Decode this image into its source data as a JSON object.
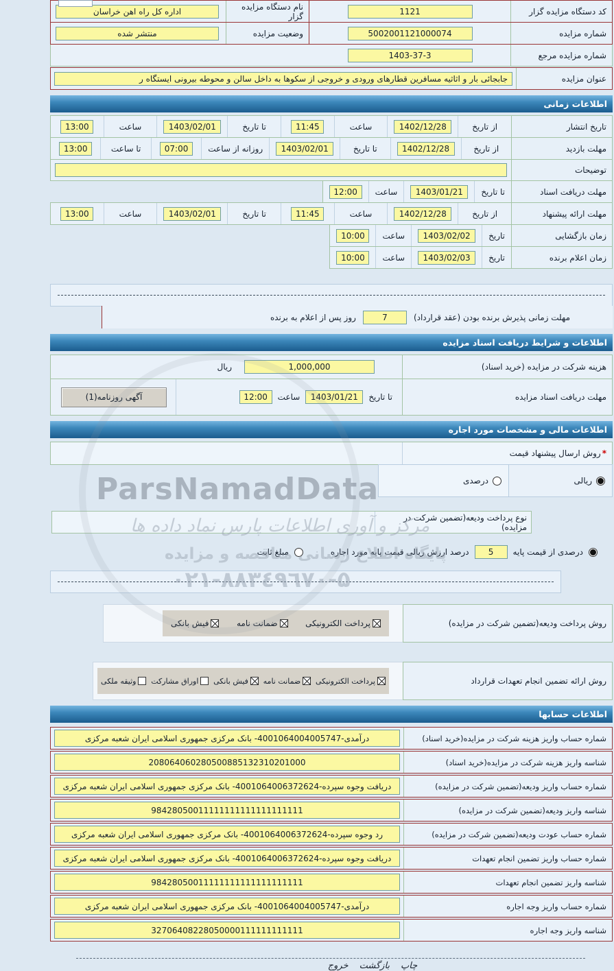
{
  "general": {
    "device_code_label": "کد دستگاه مزایده گزار",
    "device_code": "1121",
    "device_name_label": "نام دستگاه مزایده گزار",
    "device_name": "اداره کل راه اهن خراسان",
    "auction_no_label": "شماره مزایده",
    "auction_no": "5002001121000074",
    "status_label": "وضعیت مزایده",
    "status": "منتشر شده",
    "ref_no_label": "شماره مزایده مرجع",
    "ref_no": "1403-37-3",
    "title_label": "عنوان مزایده",
    "title": "جابجائی  بار و اثاثیه مسافرین قطارهای ورودی و خروجی از سکوها به  داخل سالن و محوطه بیرونی  ایستگاه ر"
  },
  "sections": {
    "time": "اطلاعات زمانی",
    "docs": "اطلاعات و شرایط دریافت اسناد مزایده",
    "financial": "اطلاعات مالی و مشخصات مورد اجاره",
    "accounts": "اطلاعات حسابها"
  },
  "time_rows": [
    {
      "label": "تاریخ انتشار",
      "full": true,
      "fields": [
        {
          "c": "از تاریخ",
          "v": "1402/12/28"
        },
        {
          "c": "ساعت",
          "v": "11:45"
        },
        {
          "c": "تا تاریخ",
          "v": "1403/02/01"
        },
        {
          "c": "ساعت",
          "v": "13:00"
        }
      ]
    },
    {
      "label": "مهلت بازدید",
      "full": true,
      "fields": [
        {
          "c": "از تاریخ",
          "v": "1402/12/28"
        },
        {
          "c": "تا تاریخ",
          "v": "1403/02/01"
        },
        {
          "c": "روزانه از ساعت",
          "v": "07:00"
        },
        {
          "c": "تا ساعت",
          "v": "13:00"
        }
      ]
    },
    {
      "label": "توضیحات",
      "textarea": true,
      "value": ""
    },
    {
      "label": "مهلت دریافت اسناد",
      "fields": [
        {
          "c": "تا تاریخ",
          "v": "1403/01/21"
        },
        {
          "c": "ساعت",
          "v": "12:00"
        }
      ]
    },
    {
      "label": "مهلت ارائه پیشنهاد",
      "full": true,
      "fields": [
        {
          "c": "از تاریخ",
          "v": "1402/12/28"
        },
        {
          "c": "ساعت",
          "v": "11:45"
        },
        {
          "c": "تا تاریخ",
          "v": "1403/02/01"
        },
        {
          "c": "ساعت",
          "v": "13:00"
        }
      ]
    },
    {
      "label": "زمان بازگشایی",
      "fields": [
        {
          "c": "تاریخ",
          "v": "1403/02/02"
        },
        {
          "c": "ساعت",
          "v": "10:00"
        }
      ]
    },
    {
      "label": "زمان اعلام برنده",
      "fields": [
        {
          "c": "تاریخ",
          "v": "1403/02/03"
        },
        {
          "c": "ساعت",
          "v": "10:00"
        }
      ]
    }
  ],
  "award": {
    "label": "مهلت زمانی پذیرش برنده بودن (عقد قرارداد)",
    "value": "7",
    "suffix": "روز پس از اعلام به برنده"
  },
  "docs": {
    "fee_label": "هزینه شرکت در مزایده (خرید اسناد)",
    "fee_value": "1,000,000",
    "fee_unit": "ریال",
    "deadline_label": "مهلت دریافت اسناد مزایده",
    "deadline_date_caption": "تا تاریخ",
    "deadline_date": "1403/01/21",
    "deadline_time_caption": "ساعت",
    "deadline_time": "12:00",
    "newspaper_button": "آگهی روزنامه(1)"
  },
  "financial": {
    "required_mark": "*",
    "price_method_label": "روش ارسال پیشنهاد قیمت",
    "rial_label": "ریالی",
    "rial_selected": true,
    "percent_label": "درصدی",
    "percent_selected": false,
    "deposit_type_label": "نوع پرداخت ودیعه(تضمین شرکت در مزایده)",
    "percent_base_label": "درصدی از قیمت پایه",
    "percent_base_selected": true,
    "percent_value": "5",
    "percent_caption": "درصد ارزش ریالی قیمت پایه مورد اجاره",
    "fixed_label": "مبلغ ثابت",
    "fixed_selected": false,
    "deposit_pay_label": "روش پرداخت ودیعه(تضمین شرکت در مزایده)",
    "deposit_pay_options": [
      {
        "label": "پرداخت الکترونیکی",
        "checked": true
      },
      {
        "label": "ضمانت نامه",
        "checked": true
      },
      {
        "label": "فیش بانکی",
        "checked": true
      }
    ],
    "guarantee_label": "روش ارائه تضمین انجام تعهدات قرارداد",
    "guarantee_options": [
      {
        "label": "پرداخت الکترونیکی",
        "checked": true
      },
      {
        "label": "ضمانت نامه",
        "checked": true
      },
      {
        "label": "فیش بانکی",
        "checked": true
      },
      {
        "label": "اوراق مشارکت",
        "checked": false
      },
      {
        "label": "وثیقه ملکی",
        "checked": false
      }
    ]
  },
  "account_rows": [
    {
      "label": "شماره حساب واریز هزینه شرکت در مزایده(خرید اسناد)",
      "value": "درآمدی-4001064004005747- بانک مرکزی جمهوری اسلامی ایران شعبه مرکزی"
    },
    {
      "label": "شناسه واریز هزینه شرکت در مزایده(خرید اسناد)",
      "value": "208064060280500885132310201000"
    },
    {
      "label": "شماره حساب واریز ودیعه(تضمین شرکت در مزایده)",
      "value": "دریافت وجوه سپرده-4001064006372624- بانک مرکزی جمهوری اسلامی ایران شعبه مرکزی"
    },
    {
      "label": "شناسه واریز ودیعه(تضمین شرکت در مزایده)",
      "value": "98428050011111111111111111111"
    },
    {
      "label": "شماره حساب عودت ودیعه(تضمین شرکت در مزایده)",
      "value": "رد وجوه سپرده-4001064006372624- بانک مرکزی جمهوری اسلامی ایران شعبه مرکزی"
    },
    {
      "label": "شماره حساب واریز تضمین انجام تعهدات",
      "value": "دریافت وجوه سپرده-4001064006372624- بانک مرکزی جمهوری اسلامی ایران شعبه مرکزی"
    },
    {
      "label": "شناسه واریز تضمین انجام تعهدات",
      "value": "98428050011111111111111111111"
    },
    {
      "label": "شماره حساب واریز وجه اجاره",
      "value": "درآمدی-4001064004005747- بانک مرکزی جمهوری اسلامی ایران شعبه مرکزی"
    },
    {
      "label": "شناسه واریز وجه اجاره",
      "value": "32706408228050000111111111111"
    }
  ],
  "footer": {
    "print": "چاپ",
    "back": "بازگشت",
    "exit": "خروج"
  },
  "watermark": {
    "brand": "ParsNamadData",
    "line1": "مرکز و آوری اطلاعات پارس نماد داده ها",
    "line2": "پایگاه اطلاع رسانی مناقصه و مزایده",
    "phone": "۰۲۱-۸۸۳٤۹٦۷۰-۵"
  }
}
